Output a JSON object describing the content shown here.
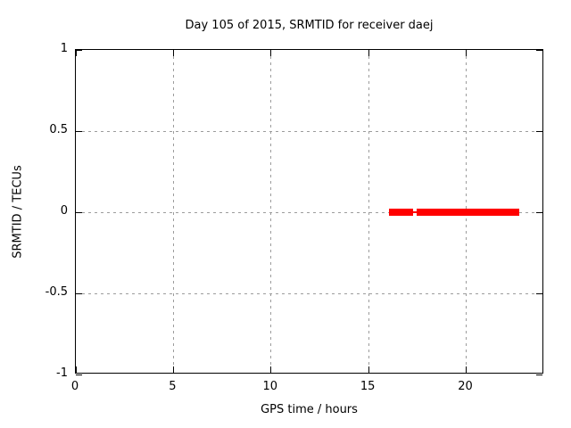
{
  "chart_data": {
    "type": "line",
    "title": "Day 105 of 2015, SRMTID for receiver daej",
    "xlabel": "GPS time / hours",
    "ylabel": "SRMTID / TECUs",
    "xlim": [
      0,
      24
    ],
    "ylim": [
      -1,
      1
    ],
    "grid": true,
    "legend": "none",
    "xticks": [
      {
        "value": 0,
        "label": "0"
      },
      {
        "value": 5,
        "label": "5"
      },
      {
        "value": 10,
        "label": "10"
      },
      {
        "value": 15,
        "label": "15"
      },
      {
        "value": 20,
        "label": "20"
      }
    ],
    "yticks": [
      {
        "value": 1,
        "label": "1"
      },
      {
        "value": 0.5,
        "label": "0.5"
      },
      {
        "value": 0,
        "label": "0"
      },
      {
        "value": -0.5,
        "label": "-0.5"
      },
      {
        "value": -1,
        "label": "-1"
      }
    ],
    "series": [
      {
        "name": "SRMTID",
        "color": "#ff0000",
        "segments": [
          {
            "x_start": 16.05,
            "x_end": 17.27,
            "y": 0,
            "thickness_px": 8
          },
          {
            "x_start": 17.27,
            "x_end": 17.45,
            "y": 0,
            "thickness_px": 2
          },
          {
            "x_start": 17.45,
            "x_end": 22.72,
            "y": 0,
            "thickness_px": 8
          }
        ]
      }
    ],
    "colors": {
      "series": "#ff0000",
      "grid": "#9c9c9c",
      "axis": "#000000",
      "background": "#ffffff"
    }
  }
}
